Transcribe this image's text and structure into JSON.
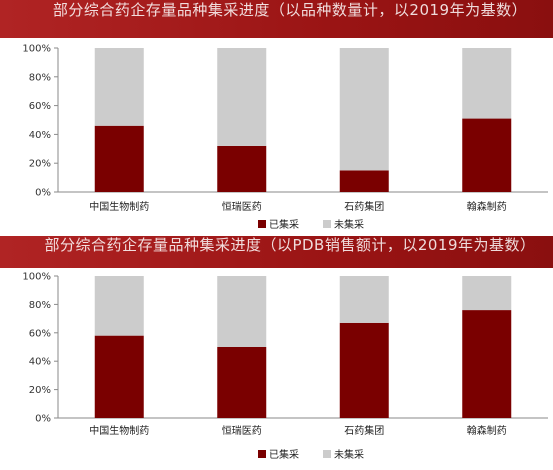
{
  "chart_data": [
    {
      "type": "bar",
      "stacked": true,
      "title": "部分综合药企存量品种集采进度（以品种数量计，以2019年为基数）",
      "categories": [
        "中国生物制药",
        "恒瑞医药",
        "石药集团",
        "翰森制药"
      ],
      "series": [
        {
          "name": "已集采",
          "color": "#7a0000",
          "values": [
            46,
            32,
            15,
            51
          ]
        },
        {
          "name": "未集采",
          "color": "#cccccc",
          "values": [
            54,
            68,
            85,
            49
          ]
        }
      ],
      "ylim": [
        0,
        100
      ],
      "yticks": [
        "0%",
        "20%",
        "40%",
        "60%",
        "80%",
        "100%"
      ],
      "legend_position": "bottom-center",
      "grid": false
    },
    {
      "type": "bar",
      "stacked": true,
      "title": "部分综合药企存量品种集采进度（以PDB销售额计，以2019年为基数）",
      "categories": [
        "中国生物制药",
        "恒瑞医药",
        "石药集团",
        "翰森制药"
      ],
      "series": [
        {
          "name": "已集采",
          "color": "#7a0000",
          "values": [
            58,
            50,
            67,
            76
          ]
        },
        {
          "name": "未集采",
          "color": "#cccccc",
          "values": [
            42,
            50,
            33,
            24
          ]
        }
      ],
      "ylim": [
        0,
        100
      ],
      "yticks": [
        "0%",
        "20%",
        "40%",
        "60%",
        "80%",
        "100%"
      ],
      "legend_position": "bottom-center",
      "grid": false
    }
  ]
}
